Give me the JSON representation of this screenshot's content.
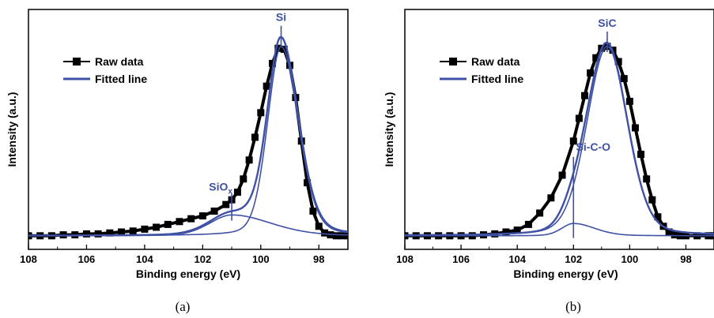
{
  "colors": {
    "fit": "#3f51a5",
    "raw": "#000000",
    "axis": "#000000"
  },
  "chart_data": [
    {
      "type": "line",
      "panel_label": "(a)",
      "xlabel": "Binding energy (eV)",
      "ylabel": "Intensity (a.u.)",
      "x_axis_reversed": true,
      "xlim": [
        108,
        97
      ],
      "xticks": [
        108,
        106,
        104,
        102,
        100,
        98
      ],
      "ylim": [
        -0.03,
        1.12
      ],
      "y_tick_labels": false,
      "legend": {
        "position": "top-left",
        "entries": [
          "Raw data",
          "Fitted line"
        ]
      },
      "series": [
        {
          "name": "Raw data",
          "marker": "square",
          "x": [
            108.0,
            107.6,
            107.2,
            106.8,
            106.4,
            106.0,
            105.6,
            105.2,
            104.8,
            104.4,
            104.0,
            103.6,
            103.2,
            102.8,
            102.4,
            102.0,
            101.6,
            101.2,
            101.0,
            100.8,
            100.6,
            100.4,
            100.2,
            100.0,
            99.8,
            99.6,
            99.4,
            99.2,
            99.0,
            98.8,
            98.6,
            98.4,
            98.2,
            98.0,
            97.8,
            97.6,
            97.4,
            97.2,
            97.0
          ],
          "values": [
            0.0,
            0.0,
            0.0,
            0.005,
            0.005,
            0.01,
            0.01,
            0.015,
            0.02,
            0.025,
            0.035,
            0.045,
            0.06,
            0.075,
            0.09,
            0.105,
            0.13,
            0.165,
            0.19,
            0.23,
            0.3,
            0.4,
            0.52,
            0.65,
            0.79,
            0.91,
            0.99,
            0.985,
            0.9,
            0.73,
            0.5,
            0.28,
            0.13,
            0.05,
            0.015,
            0.005,
            0.0,
            0.0,
            0.0
          ]
        },
        {
          "name": "Fitted line",
          "components": [
            {
              "label": "Si",
              "center": 99.3,
              "height": 1.0
            },
            {
              "label": "SiOₓ",
              "center": 101.0,
              "height": 0.11
            }
          ],
          "baseline": 0.0
        }
      ],
      "annotations": [
        {
          "text": "Si",
          "x": 99.3
        },
        {
          "text": "SiO",
          "subscript": "x",
          "x": 101.0
        }
      ]
    },
    {
      "type": "line",
      "panel_label": "(b)",
      "xlabel": "Binding energy (eV)",
      "ylabel": "Intensity (a.u.)",
      "x_axis_reversed": true,
      "xlim": [
        108,
        97
      ],
      "xticks": [
        108,
        106,
        104,
        102,
        100,
        98
      ],
      "ylim": [
        -0.03,
        1.12
      ],
      "y_tick_labels": false,
      "legend": {
        "position": "top-left",
        "entries": [
          "Raw data",
          "Fitted line"
        ]
      },
      "series": [
        {
          "name": "Raw data",
          "marker": "square",
          "x": [
            108.0,
            107.6,
            107.2,
            106.8,
            106.4,
            106.0,
            105.6,
            105.2,
            104.8,
            104.4,
            104.0,
            103.6,
            103.2,
            102.8,
            102.4,
            102.0,
            101.8,
            101.6,
            101.4,
            101.2,
            101.0,
            100.8,
            100.6,
            100.4,
            100.2,
            100.0,
            99.8,
            99.6,
            99.4,
            99.2,
            99.0,
            98.8,
            98.6,
            98.4,
            98.2,
            98.0,
            97.6,
            97.2,
            97.0
          ],
          "values": [
            0.0,
            0.0,
            0.0,
            0.0,
            0.0,
            0.0,
            0.0,
            0.005,
            0.01,
            0.02,
            0.03,
            0.06,
            0.12,
            0.2,
            0.32,
            0.5,
            0.62,
            0.74,
            0.86,
            0.94,
            0.99,
            1.0,
            0.98,
            0.92,
            0.83,
            0.71,
            0.57,
            0.43,
            0.3,
            0.19,
            0.1,
            0.05,
            0.02,
            0.005,
            0.0,
            0.0,
            0.0,
            0.0,
            0.0
          ]
        },
        {
          "name": "Fitted line",
          "components": [
            {
              "label": "SiC",
              "center": 100.8,
              "height": 1.0
            },
            {
              "label": "Si-C-O",
              "center": 102.0,
              "height": 0.065
            }
          ],
          "baseline": 0.0
        }
      ],
      "annotations": [
        {
          "text": "SiC",
          "x": 100.8
        },
        {
          "text": "Si-C-O",
          "x": 102.0
        }
      ]
    }
  ]
}
